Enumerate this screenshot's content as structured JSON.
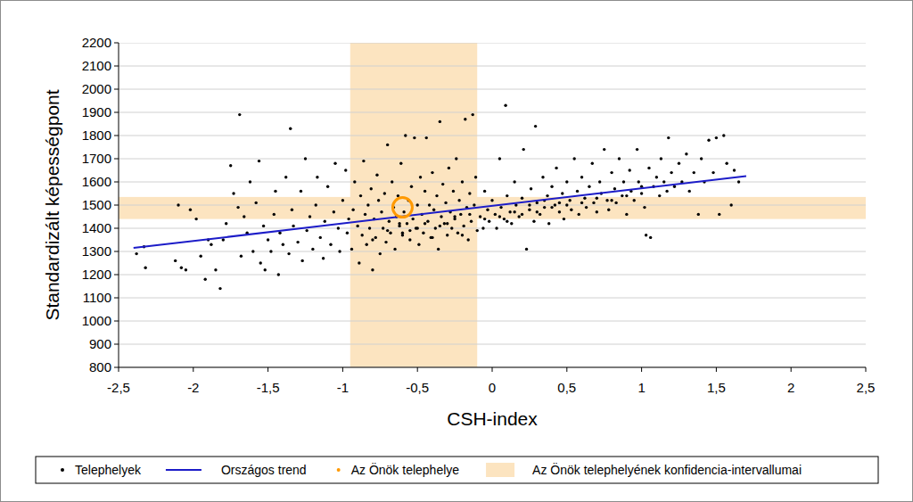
{
  "chart_data": {
    "type": "scatter",
    "x_label": "CSH-index",
    "y_label": "Standardizált képességpont",
    "xlim": [
      -2.5,
      2.5
    ],
    "ylim": [
      800,
      2200
    ],
    "xticks": [
      {
        "value": -2.5,
        "label": "-2,5"
      },
      -2,
      {
        "value": -1.5,
        "label": "-1,5"
      },
      -1,
      {
        "value": -0.5,
        "label": "-0,5"
      },
      0,
      {
        "value": 0.5,
        "label": "0,5"
      },
      1,
      {
        "value": 1.5,
        "label": "1,5"
      },
      2,
      {
        "value": 2.5,
        "label": "2,5"
      }
    ],
    "yticks": [
      800,
      900,
      1000,
      1100,
      1200,
      1300,
      1400,
      1500,
      1600,
      1700,
      1800,
      1900,
      2000,
      2100,
      2200
    ],
    "grid": "y",
    "legend": "bottom",
    "series": [
      {
        "name": "Telephelyek",
        "type": "scatter",
        "color": "#000000",
        "marker": "circle",
        "x": [
          -2.38,
          -2.33,
          -2.32,
          -2.12,
          -2.1,
          -2.08,
          -2.05,
          -2.02,
          -1.98,
          -1.95,
          -1.92,
          -1.9,
          -1.88,
          -1.85,
          -1.82,
          -1.8,
          -1.78,
          -1.75,
          -1.73,
          -1.7,
          -1.69,
          -1.68,
          -1.66,
          -1.64,
          -1.62,
          -1.6,
          -1.58,
          -1.56,
          -1.55,
          -1.53,
          -1.52,
          -1.5,
          -1.48,
          -1.46,
          -1.45,
          -1.43,
          -1.42,
          -1.4,
          -1.38,
          -1.36,
          -1.35,
          -1.34,
          -1.33,
          -1.3,
          -1.28,
          -1.27,
          -1.25,
          -1.24,
          -1.22,
          -1.2,
          -1.18,
          -1.17,
          -1.15,
          -1.13,
          -1.12,
          -1.1,
          -1.08,
          -1.06,
          -1.05,
          -1.03,
          -1.02,
          -1.0,
          -0.98,
          -0.97,
          -0.96,
          -0.94,
          -0.93,
          -0.92,
          -0.9,
          -0.89,
          -0.88,
          -0.87,
          -0.86,
          -0.85,
          -0.84,
          -0.83,
          -0.82,
          -0.81,
          -0.8,
          -0.79,
          -0.78,
          -0.77,
          -0.76,
          -0.75,
          -0.74,
          -0.73,
          -0.72,
          -0.71,
          -0.7,
          -0.69,
          -0.68,
          -0.67,
          -0.66,
          -0.65,
          -0.64,
          -0.63,
          -0.62,
          -0.61,
          -0.6,
          -0.59,
          -0.58,
          -0.57,
          -0.56,
          -0.55,
          -0.54,
          -0.53,
          -0.52,
          -0.51,
          -0.5,
          -0.49,
          -0.48,
          -0.47,
          -0.46,
          -0.45,
          -0.44,
          -0.43,
          -0.42,
          -0.41,
          -0.4,
          -0.39,
          -0.38,
          -0.37,
          -0.36,
          -0.35,
          -0.34,
          -0.33,
          -0.32,
          -0.31,
          -0.3,
          -0.29,
          -0.28,
          -0.27,
          -0.26,
          -0.25,
          -0.24,
          -0.23,
          -0.22,
          -0.21,
          -0.2,
          -0.19,
          -0.18,
          -0.17,
          -0.16,
          -0.15,
          -0.14,
          -0.13,
          -0.12,
          -0.11,
          -0.08,
          -0.06,
          -0.05,
          -0.03,
          -0.02,
          0.0,
          0.02,
          0.03,
          0.05,
          0.06,
          0.08,
          0.09,
          0.1,
          0.12,
          0.13,
          0.15,
          0.16,
          0.18,
          0.2,
          0.21,
          0.23,
          0.25,
          0.26,
          0.28,
          0.29,
          0.3,
          0.32,
          0.34,
          0.35,
          0.37,
          0.38,
          0.4,
          0.42,
          0.43,
          0.45,
          0.47,
          0.48,
          0.5,
          0.52,
          0.53,
          0.55,
          0.57,
          0.58,
          0.6,
          0.62,
          0.63,
          0.65,
          0.67,
          0.68,
          0.7,
          0.72,
          0.73,
          0.75,
          0.77,
          0.78,
          0.8,
          0.82,
          0.83,
          0.85,
          0.87,
          0.88,
          0.9,
          0.92,
          0.93,
          0.95,
          0.97,
          0.98,
          1.0,
          1.02,
          1.03,
          1.05,
          1.06,
          1.08,
          1.1,
          1.12,
          1.13,
          1.15,
          1.17,
          1.18,
          1.2,
          1.22,
          1.25,
          1.27,
          1.3,
          1.32,
          1.35,
          1.38,
          1.4,
          1.42,
          1.45,
          1.48,
          1.5,
          1.52,
          1.55,
          1.57,
          1.6,
          1.62,
          1.65,
          -0.62,
          -0.55,
          -0.45,
          -0.35,
          -0.25,
          -0.15,
          -0.05,
          0.05,
          0.15,
          0.25,
          0.35,
          0.45,
          -0.7,
          -0.8,
          -0.3,
          0.1,
          0.2,
          0.3,
          0.4,
          0.5,
          0.6,
          0.7,
          0.8,
          0.9,
          1.0,
          -0.1,
          -0.2,
          -0.4,
          -0.5,
          -0.6
        ],
        "values": [
          1290,
          1320,
          1230,
          1260,
          1500,
          1230,
          1220,
          1480,
          1440,
          1280,
          1180,
          1350,
          1330,
          1220,
          1140,
          1350,
          1420,
          1670,
          1550,
          1490,
          1890,
          1280,
          1450,
          1380,
          1600,
          1300,
          1510,
          1690,
          1250,
          1410,
          1220,
          1350,
          1300,
          1460,
          1560,
          1200,
          1380,
          1330,
          1620,
          1290,
          1830,
          1480,
          1410,
          1340,
          1560,
          1260,
          1700,
          1390,
          1450,
          1310,
          1500,
          1620,
          1360,
          1270,
          1430,
          1580,
          1330,
          1470,
          1680,
          1400,
          1300,
          1520,
          1650,
          1380,
          1440,
          1310,
          1480,
          1600,
          1410,
          1250,
          1540,
          1370,
          1690,
          1460,
          1330,
          1500,
          1400,
          1570,
          1220,
          1440,
          1360,
          1630,
          1520,
          1290,
          1470,
          1400,
          1550,
          1340,
          1760,
          1430,
          1380,
          1600,
          1490,
          1310,
          1450,
          1540,
          1410,
          1680,
          1370,
          1470,
          1800,
          1420,
          1520,
          1350,
          1580,
          1440,
          1790,
          1400,
          1500,
          1330,
          1620,
          1460,
          1380,
          1560,
          1790,
          1430,
          1500,
          1360,
          1640,
          1480,
          1400,
          1540,
          1310,
          1860,
          1450,
          1590,
          1420,
          1510,
          1370,
          1660,
          1470,
          1400,
          1560,
          1440,
          1700,
          1380,
          1520,
          1460,
          1600,
          1410,
          1870,
          1490,
          1350,
          1550,
          1430,
          1890,
          1500,
          1620,
          1450,
          1400,
          1560,
          1480,
          1430,
          1520,
          1460,
          1400,
          1700,
          1490,
          1440,
          1930,
          1540,
          1470,
          1420,
          1600,
          1500,
          1450,
          1530,
          1740,
          1310,
          1480,
          1570,
          1430,
          1840,
          1510,
          1460,
          1620,
          1490,
          1540,
          1420,
          1580,
          1500,
          1660,
          1470,
          1550,
          1440,
          1600,
          1520,
          1480,
          1700,
          1560,
          1460,
          1620,
          1530,
          1490,
          1580,
          1680,
          1510,
          1470,
          1600,
          1550,
          1740,
          1520,
          1480,
          1640,
          1570,
          1510,
          1700,
          1540,
          1600,
          1460,
          1650,
          1560,
          1520,
          1740,
          1600,
          1550,
          1490,
          1370,
          1660,
          1360,
          1580,
          1620,
          1540,
          1700,
          1600,
          1560,
          1790,
          1640,
          1580,
          1680,
          1600,
          1720,
          1560,
          1640,
          1460,
          1700,
          1600,
          1780,
          1640,
          1790,
          1460,
          1800,
          1680,
          1500,
          1650,
          1600,
          1420,
          1390,
          1420,
          1410,
          1450,
          1460,
          1440,
          1450,
          1470,
          1500,
          1520,
          1510,
          1390,
          1350,
          1420,
          1430,
          1460,
          1470,
          1490,
          1500,
          1510,
          1530,
          1520,
          1540,
          1580,
          1390,
          1370,
          1360,
          1400,
          1380
        ]
      },
      {
        "name": "Országos trend",
        "type": "line",
        "color": "#1c1cc8",
        "line_style": "solid",
        "x": [
          -2.4,
          1.7
        ],
        "values": [
          1315,
          1625
        ]
      },
      {
        "name": "Az Önök telephelye",
        "type": "scatter",
        "color": "#ff9900",
        "marker": "ring",
        "x": [
          -0.6
        ],
        "values": [
          1490
        ]
      },
      {
        "name": "Az Önök telephelyének konfidencia-intervallumai",
        "type": "interval",
        "color": "#fce4c0",
        "x_interval": [
          -0.95,
          -0.1
        ],
        "y_interval": [
          1440,
          1535
        ]
      }
    ]
  }
}
